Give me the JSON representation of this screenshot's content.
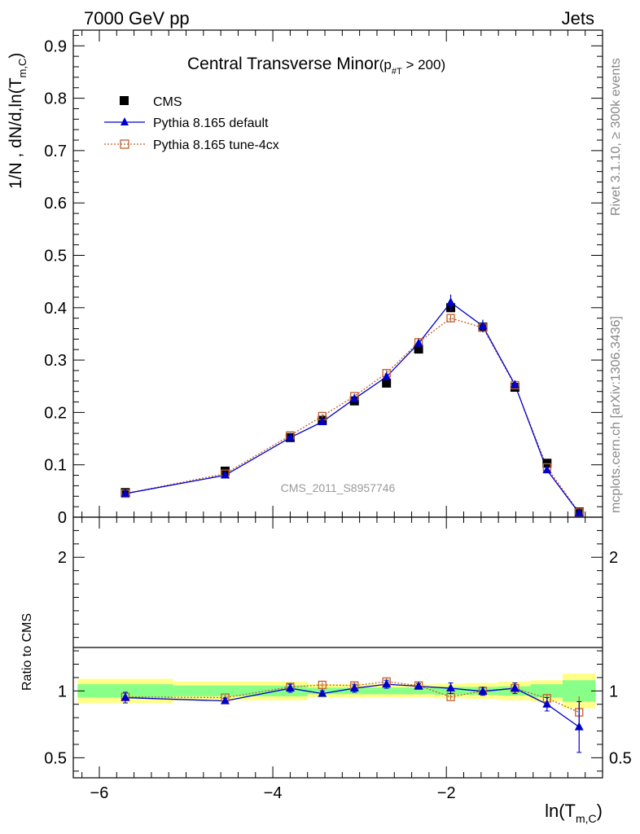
{
  "header": {
    "left": "7000 GeV pp",
    "right": "Jets"
  },
  "title": {
    "main": "Central Transverse Minor",
    "sub_open": "(p",
    "sub_script": "#T",
    "sub_close": " > 200)"
  },
  "watermark": "CMS_2011_S8957746",
  "side_labels": {
    "rivet": "Rivet 3.1.10, ≥ 300k events",
    "mcplots": "mcplots.cern.ch [arXiv:1306.3436]"
  },
  "legend": {
    "cms": "CMS",
    "default": "Pythia 8.165 default",
    "tune": "Pythia 8.165 tune-4cx"
  },
  "axes": {
    "ylabel_main": "1/N  , dN/d,ln(T",
    "ylabel_main_sub": "m,C",
    "ylabel_main_close": ")",
    "ylabel_ratio": "Ratio to CMS",
    "xlabel": "ln(T",
    "xlabel_sub": "m,C",
    "xlabel_close": ")"
  },
  "colors": {
    "cms": "#000000",
    "default": "#0000cc",
    "tune": "#c06030",
    "band_outer": "#ffff88",
    "band_inner": "#88ff88"
  },
  "chart_data": {
    "type": "line",
    "xlim": [
      -6.3,
      -0.2
    ],
    "ylim_main": [
      0,
      0.93
    ],
    "ylim_ratio": [
      0.35,
      2.3
    ],
    "x_ticks": [
      -6,
      -4,
      -2
    ],
    "x_tick_labels": [
      "−6",
      "−4",
      "−2"
    ],
    "y_ticks_main": [
      0,
      0.1,
      0.2,
      0.3,
      0.4,
      0.5,
      0.6,
      0.7,
      0.8,
      0.9
    ],
    "y_tick_labels_main": [
      "0",
      "0.1",
      "0.2",
      "0.3",
      "0.4",
      "0.5",
      "0.6",
      "0.7",
      "0.8",
      "0.9"
    ],
    "y_ticks_ratio": [
      0.5,
      1,
      2
    ],
    "y_tick_labels_ratio": [
      "0.5",
      "1",
      "2"
    ],
    "x": [
      -5.7,
      -4.55,
      -3.8,
      -3.43,
      -3.06,
      -2.69,
      -2.32,
      -1.95,
      -1.58,
      -1.21,
      -0.84,
      -0.47
    ],
    "bin_edges": [
      -6.25,
      -5.15,
      -3.95,
      -3.6,
      -3.25,
      -2.88,
      -2.51,
      -2.14,
      -1.77,
      -1.4,
      -1.03,
      -0.66,
      -0.28
    ],
    "series": [
      {
        "name": "CMS",
        "values": [
          0.047,
          0.088,
          0.152,
          0.185,
          0.222,
          0.256,
          0.321,
          0.4,
          0.363,
          0.248,
          0.103,
          0.01
        ]
      },
      {
        "name": "Pythia 8.165 default",
        "values": [
          0.045,
          0.08,
          0.152,
          0.182,
          0.226,
          0.268,
          0.332,
          0.41,
          0.365,
          0.253,
          0.09,
          0.008
        ],
        "errors": [
          0.002,
          0.002,
          0.003,
          0.004,
          0.005,
          0.006,
          0.007,
          0.015,
          0.012,
          0.006,
          0.003,
          0.002
        ],
        "ratio": [
          0.95,
          0.925,
          1.02,
          0.98,
          1.02,
          1.05,
          1.035,
          1.02,
          0.997,
          1.02,
          0.9,
          0.73
        ],
        "ratio_errors": [
          0.04,
          0.02,
          0.03,
          0.02,
          0.03,
          0.03,
          0.02,
          0.04,
          0.03,
          0.04,
          0.05,
          0.19
        ]
      },
      {
        "name": "Pythia 8.165 tune-4cx",
        "values": [
          0.045,
          0.083,
          0.156,
          0.193,
          0.231,
          0.275,
          0.334,
          0.38,
          0.362,
          0.252,
          0.095,
          0.009
        ],
        "errors": [
          0.002,
          0.002,
          0.003,
          0.004,
          0.005,
          0.006,
          0.007,
          0.006,
          0.006,
          0.006,
          0.003,
          0.002
        ],
        "ratio": [
          0.955,
          0.95,
          1.03,
          1.045,
          1.04,
          1.07,
          1.04,
          0.955,
          1.0,
          1.02,
          0.945,
          0.84
        ],
        "ratio_errors": [
          0.03,
          0.02,
          0.03,
          0.02,
          0.03,
          0.03,
          0.02,
          0.02,
          0.03,
          0.03,
          0.03,
          0.12
        ]
      }
    ],
    "ratio_band": {
      "inner": [
        0.05,
        0.04,
        0.04,
        0.025,
        0.025,
        0.025,
        0.025,
        0.03,
        0.03,
        0.035,
        0.05,
        0.08
      ],
      "outer": [
        0.09,
        0.07,
        0.07,
        0.05,
        0.05,
        0.05,
        0.05,
        0.055,
        0.06,
        0.07,
        0.08,
        0.13
      ]
    }
  }
}
